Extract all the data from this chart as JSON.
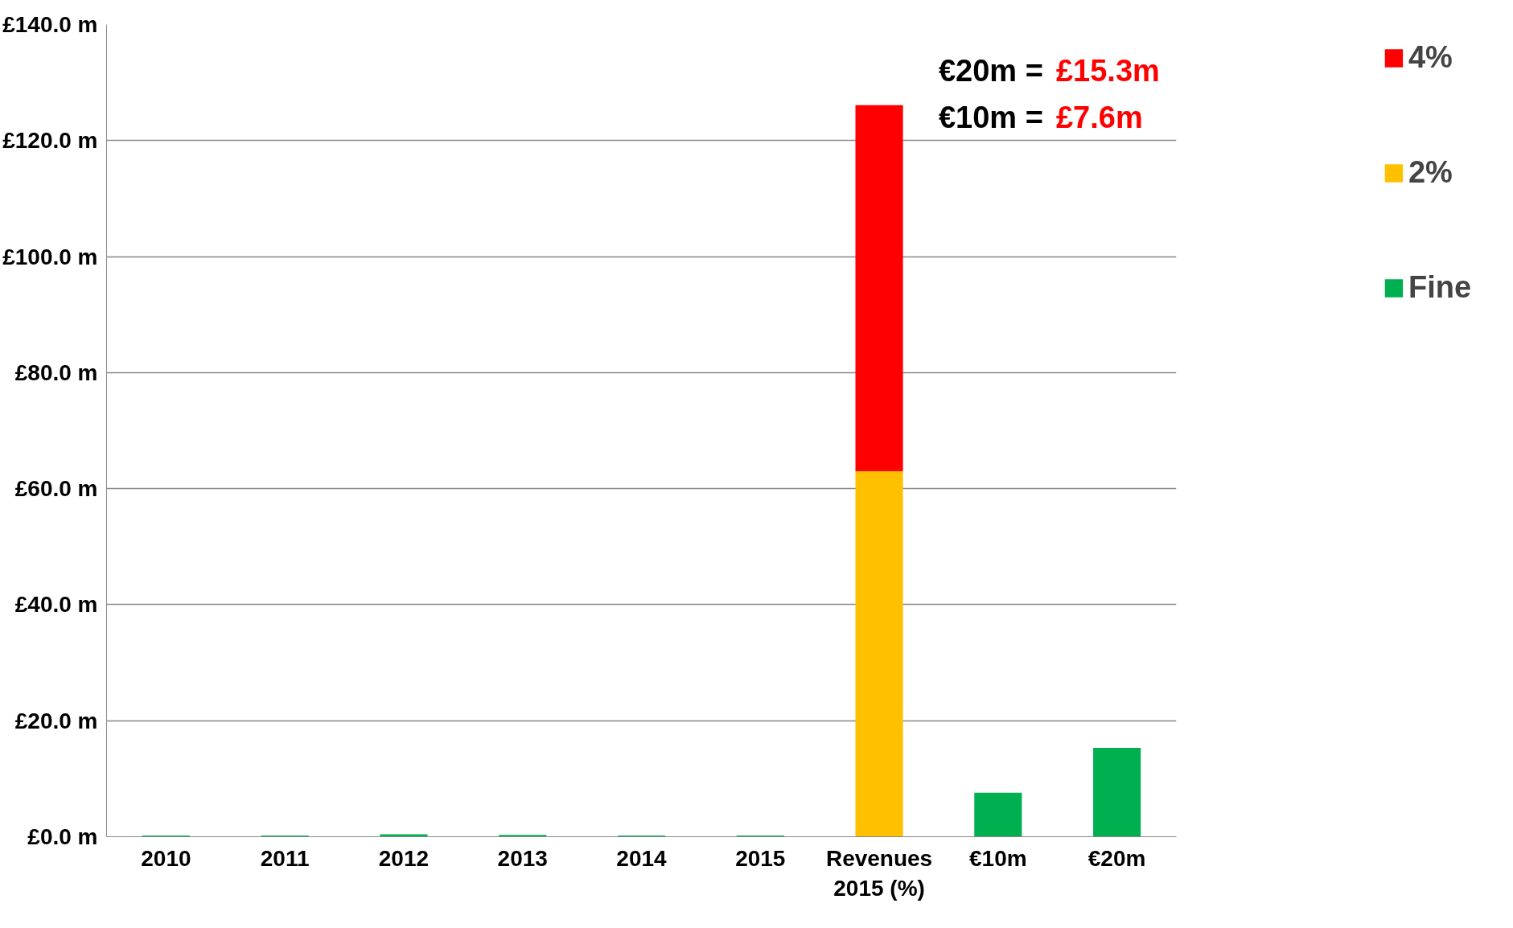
{
  "chart_data": {
    "type": "bar",
    "stacked": true,
    "categories": [
      "2010",
      "2011",
      "2012",
      "2013",
      "2014",
      "2015",
      "Revenues 2015 (%)",
      "€10m",
      "€20m"
    ],
    "series": [
      {
        "name": "Fine",
        "color": "#00b050",
        "values": [
          0.2,
          0.2,
          0.4,
          0.3,
          0.2,
          0.2,
          0,
          7.6,
          15.3
        ]
      },
      {
        "name": "2%",
        "color": "#ffc000",
        "values": [
          0,
          0,
          0,
          0,
          0,
          0,
          63.0,
          0,
          0
        ]
      },
      {
        "name": "4%",
        "color": "#ff0000",
        "values": [
          0,
          0,
          0,
          0,
          0,
          0,
          63.1,
          0,
          0
        ]
      }
    ],
    "ylim": [
      0,
      140
    ],
    "yticks": [
      {
        "value": 0,
        "label": "£0.0 m"
      },
      {
        "value": 20,
        "label": "£20.0 m"
      },
      {
        "value": 40,
        "label": "£40.0 m"
      },
      {
        "value": 60,
        "label": "£60.0 m"
      },
      {
        "value": 80,
        "label": "£80.0 m"
      },
      {
        "value": 100,
        "label": "£100.0 m"
      },
      {
        "value": 120,
        "label": "£120.0 m"
      },
      {
        "value": 140,
        "label": "£140.0 m"
      }
    ],
    "grid": "y",
    "legend": "right",
    "annotations": [
      "€20m =",
      "£15.3m",
      "€10m =",
      "£7.6m"
    ]
  }
}
